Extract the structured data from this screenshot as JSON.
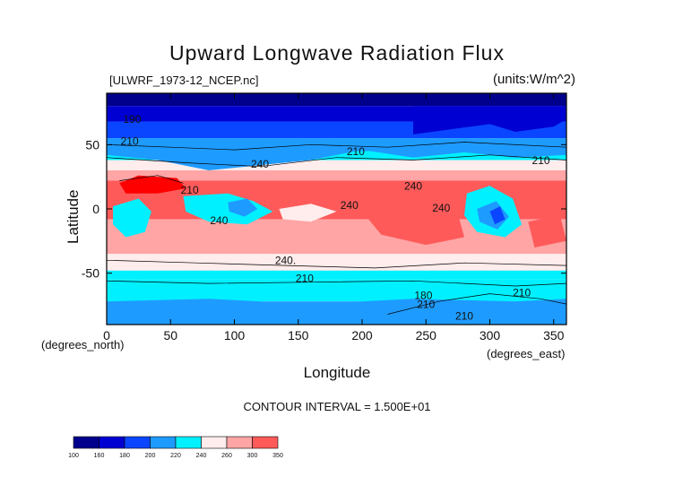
{
  "title": "Upward Longwave Radiation Flux",
  "source_label": "[ULWRF_1973-12_NCEP.nc]",
  "units_label": "(units:W/m^2)",
  "contour_interval_label": "CONTOUR INTERVAL = 1.500E+01",
  "colors": {
    "c100": "#00008c",
    "c160": "#0000d2",
    "c180": "#0a46ff",
    "c200": "#1e9bff",
    "c220": "#00f0ff",
    "c240": "#ffecec",
    "c260": "#ffa5a5",
    "c300": "#ff5a5a",
    "c350": "#ff0000"
  },
  "chart_data": {
    "type": "heatmap",
    "title": "Upward Longwave Radiation Flux",
    "xlabel": "Longitude",
    "ylabel": "Latitude",
    "xunit_label": "(degrees_east)",
    "yunit_label": "(degrees_north)",
    "xlim": [
      0,
      360
    ],
    "ylim": [
      -90,
      90
    ],
    "x_ticks": [
      0,
      50,
      100,
      150,
      200,
      250,
      300,
      350
    ],
    "y_ticks": [
      -50,
      0,
      50
    ],
    "contour_labels": [
      {
        "text": "240",
        "lon": 120,
        "lat": 32
      },
      {
        "text": "210",
        "lon": 18,
        "lat": 50
      },
      {
        "text": "190",
        "lon": 20,
        "lat": 67
      },
      {
        "text": "210",
        "lon": 195,
        "lat": 42
      },
      {
        "text": "210",
        "lon": 340,
        "lat": 35
      },
      {
        "text": "240",
        "lon": 240,
        "lat": 15
      },
      {
        "text": "210",
        "lon": 65,
        "lat": 12
      },
      {
        "text": "240",
        "lon": 88,
        "lat": -12
      },
      {
        "text": "240",
        "lon": 190,
        "lat": 0
      },
      {
        "text": "240",
        "lon": 262,
        "lat": -2
      },
      {
        "text": "240.",
        "lon": 140,
        "lat": -43
      },
      {
        "text": "210",
        "lon": 155,
        "lat": -57
      },
      {
        "text": "210",
        "lon": 250,
        "lat": -77
      },
      {
        "text": "210",
        "lon": 325,
        "lat": -68
      },
      {
        "text": "210",
        "lon": 280,
        "lat": -86
      },
      {
        "text": "180",
        "lon": 248,
        "lat": -70
      }
    ],
    "colorbar": {
      "levels": [
        "100",
        "160",
        "180",
        "200",
        "220",
        "240",
        "260",
        "300",
        "350"
      ]
    }
  }
}
